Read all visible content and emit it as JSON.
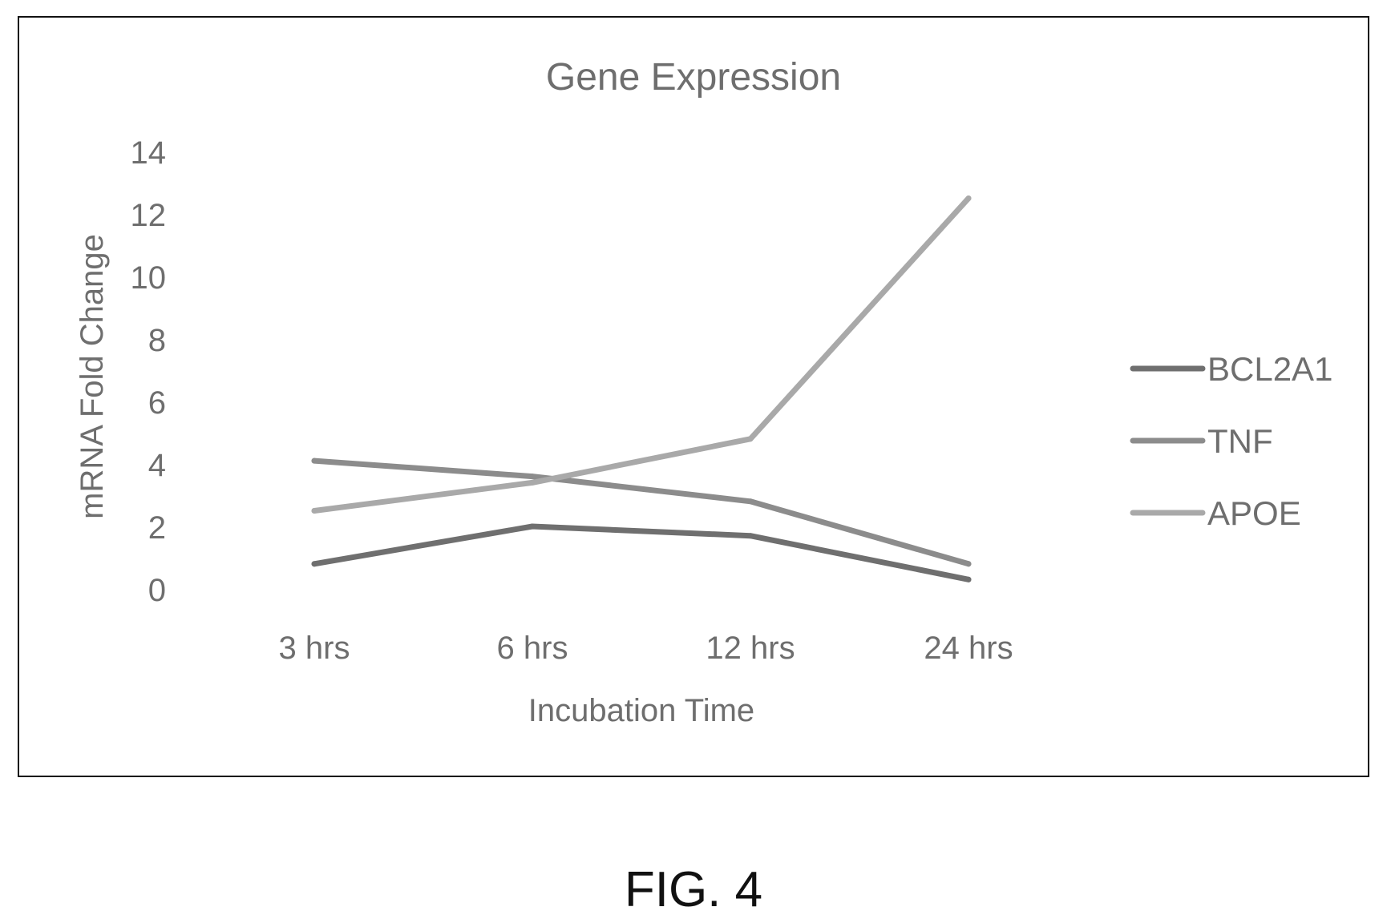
{
  "chart_data": {
    "type": "line",
    "title": "Gene Expression",
    "xlabel": "Incubation Time",
    "ylabel": "mRNA Fold Change",
    "categories": [
      "3 hrs",
      "6 hrs",
      "12 hrs",
      "24 hrs"
    ],
    "y_ticks": [
      "0",
      "2",
      "4",
      "6",
      "8",
      "10",
      "12",
      "14"
    ],
    "ylim": [
      0,
      14
    ],
    "grid": false,
    "legend_position": "right",
    "series": [
      {
        "name": "BCL2A1",
        "values": [
          0.8,
          2.0,
          1.7,
          0.3
        ],
        "color": "#6f6f6f"
      },
      {
        "name": "TNF",
        "values": [
          4.1,
          3.6,
          2.8,
          0.8
        ],
        "color": "#8c8c8c"
      },
      {
        "name": "APOE",
        "values": [
          2.5,
          3.4,
          4.8,
          12.5
        ],
        "color": "#a9a9a9"
      }
    ]
  },
  "figure": {
    "caption": "FIG. 4"
  }
}
